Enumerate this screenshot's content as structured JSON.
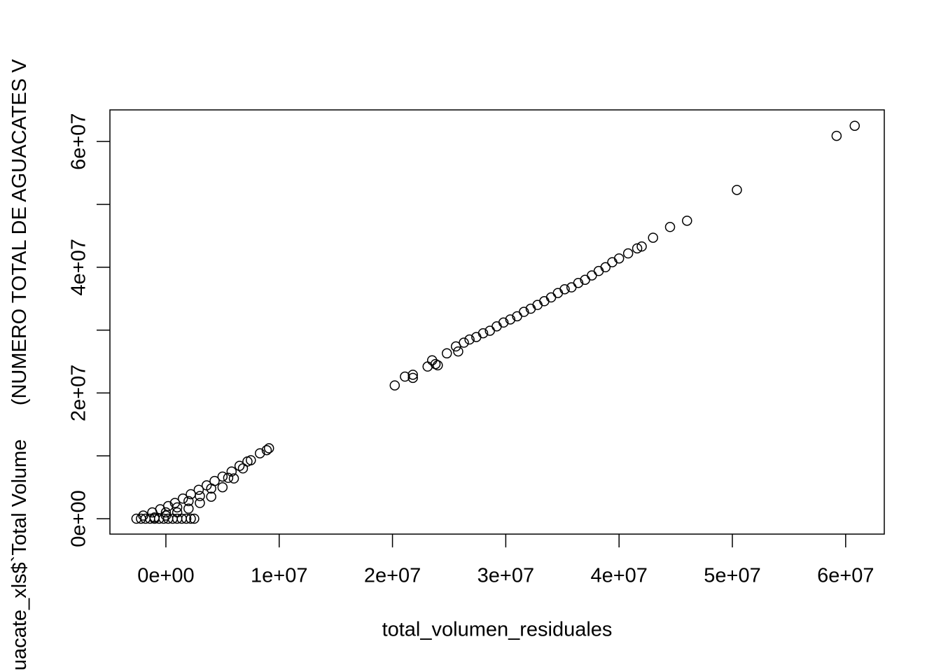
{
  "chart_data": {
    "type": "scatter",
    "xlabel": "total_volumen_residuales",
    "ylabel": "uacate_xls$`Total Volume      (NUMERO TOTAL DE AGUACATES V",
    "x": [
      20200000,
      21100000,
      21800000,
      21800000,
      23100000,
      23500000,
      23800000,
      24000000,
      24800000,
      25600000,
      25800000,
      26300000,
      26800000,
      27400000,
      28000000,
      28600000,
      29200000,
      29800000,
      30400000,
      31000000,
      31600000,
      32200000,
      32800000,
      33400000,
      34000000,
      34600000,
      35200000,
      35800000,
      36400000,
      37000000,
      37600000,
      38200000,
      38800000,
      39400000,
      40000000,
      40800000,
      41600000,
      42000000,
      43000000,
      44500000,
      46000000,
      50400000,
      59200000,
      60800000,
      -2600000,
      -2200000,
      -1800000,
      -1400000,
      -1000000,
      -600000,
      -200000,
      200000,
      600000,
      1000000,
      1400000,
      1800000,
      2200000,
      2500000,
      -2000000,
      -1200000,
      -500000,
      200000,
      800000,
      1500000,
      2200000,
      2900000,
      3600000,
      4300000,
      5000000,
      5800000,
      6500000,
      7200000,
      8300000,
      8900000,
      9100000,
      -1000000,
      0,
      1000000,
      2000000,
      3000000,
      4000000,
      5000000,
      6000000,
      0,
      1000000,
      2000000,
      3000000,
      4000000,
      5500000,
      6800000,
      7500000
    ],
    "values": [
      21200000,
      22600000,
      22900000,
      22400000,
      24200000,
      25200000,
      24600000,
      24400000,
      26300000,
      27400000,
      26600000,
      28000000,
      28500000,
      28900000,
      29500000,
      29900000,
      30600000,
      31200000,
      31700000,
      32200000,
      32900000,
      33400000,
      34000000,
      34600000,
      35200000,
      35900000,
      36500000,
      36800000,
      37500000,
      38000000,
      38700000,
      39400000,
      40000000,
      40800000,
      41400000,
      42200000,
      43000000,
      43300000,
      44700000,
      46400000,
      47400000,
      52300000,
      60900000,
      62500000,
      0,
      0,
      0,
      0,
      0,
      0,
      0,
      0,
      0,
      0,
      0,
      0,
      0,
      0,
      500000,
      1000000,
      1500000,
      2000000,
      2500000,
      3200000,
      3900000,
      4600000,
      5300000,
      6000000,
      6700000,
      7500000,
      8400000,
      9100000,
      10400000,
      10900000,
      11200000,
      200000,
      500000,
      1000000,
      1600000,
      2500000,
      3500000,
      5000000,
      6400000,
      1000000,
      1800000,
      2800000,
      3600000,
      4800000,
      6500000,
      8000000,
      9300000
    ],
    "color": "#000000",
    "xlim": [
      -4940000,
      63410000
    ],
    "ylim": [
      -2450000,
      65030000
    ],
    "xticks": [
      {
        "value": 0,
        "label": "0e+00"
      },
      {
        "value": 10000000,
        "label": "1e+07"
      },
      {
        "value": 20000000,
        "label": "2e+07"
      },
      {
        "value": 30000000,
        "label": "3e+07"
      },
      {
        "value": 40000000,
        "label": "4e+07"
      },
      {
        "value": 50000000,
        "label": "5e+07"
      },
      {
        "value": 60000000,
        "label": "6e+07"
      }
    ],
    "yticks": [
      {
        "value": 0,
        "label": "0e+00"
      },
      {
        "value": 10000000,
        "label": null
      },
      {
        "value": 20000000,
        "label": "2e+07"
      },
      {
        "value": 30000000,
        "label": null
      },
      {
        "value": 40000000,
        "label": "4e+07"
      },
      {
        "value": 50000000,
        "label": null
      },
      {
        "value": 60000000,
        "label": "6e+07"
      }
    ]
  }
}
